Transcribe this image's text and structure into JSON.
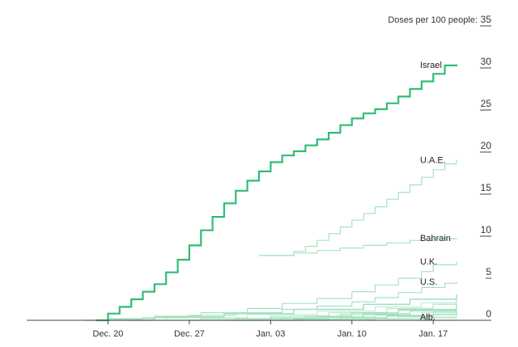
{
  "chart_data": {
    "type": "line",
    "step": true,
    "title": "",
    "ylabel": "Doses per 100 people:",
    "xlabel": "",
    "x_ticks": [
      "Dec. 20",
      "Dec. 27",
      "Jan. 03",
      "Jan. 10",
      "Jan. 17"
    ],
    "xlim": [
      "2020-12-13",
      "2021-01-22"
    ],
    "ylim": [
      0,
      35
    ],
    "y_ticks": [
      0,
      5,
      10,
      15,
      20,
      25,
      30,
      35
    ],
    "grid": false,
    "highlight_color": "#2ebd72",
    "muted_color": "#a6e3c2",
    "series": [
      {
        "name": "Israel",
        "highlight": true,
        "x": [
          "2020-12-19",
          "2020-12-20",
          "2020-12-21",
          "2020-12-22",
          "2020-12-23",
          "2020-12-24",
          "2020-12-25",
          "2020-12-26",
          "2020-12-27",
          "2020-12-28",
          "2020-12-29",
          "2020-12-30",
          "2020-12-31",
          "2021-01-01",
          "2021-01-02",
          "2021-01-03",
          "2021-01-04",
          "2021-01-05",
          "2021-01-06",
          "2021-01-07",
          "2021-01-08",
          "2021-01-09",
          "2021-01-10",
          "2021-01-11",
          "2021-01-12",
          "2021-01-13",
          "2021-01-14",
          "2021-01-15",
          "2021-01-16",
          "2021-01-17",
          "2021-01-18",
          "2021-01-19"
        ],
        "values": [
          0,
          0.8,
          1.6,
          2.5,
          3.4,
          4.3,
          5.7,
          7.2,
          8.9,
          10.7,
          12.3,
          13.9,
          15.4,
          16.6,
          17.7,
          18.8,
          19.6,
          20.1,
          20.8,
          21.5,
          22.3,
          23.2,
          24.0,
          24.6,
          25.1,
          25.8,
          26.6,
          27.5,
          28.4,
          29.3,
          30.3,
          30.4
        ]
      },
      {
        "name": "U.A.E.",
        "x": [
          "2021-01-02",
          "2021-01-05",
          "2021-01-06",
          "2021-01-07",
          "2021-01-08",
          "2021-01-09",
          "2021-01-10",
          "2021-01-11",
          "2021-01-12",
          "2021-01-13",
          "2021-01-14",
          "2021-01-15",
          "2021-01-16",
          "2021-01-17",
          "2021-01-18",
          "2021-01-19"
        ],
        "values": [
          7.7,
          8.2,
          8.8,
          9.5,
          10.3,
          11.1,
          11.9,
          12.7,
          13.5,
          14.4,
          15.2,
          16.1,
          17.0,
          17.9,
          18.6,
          19.1
        ]
      },
      {
        "name": "Bahrain",
        "x": [
          "2021-01-02",
          "2021-01-05",
          "2021-01-07",
          "2021-01-09",
          "2021-01-11",
          "2021-01-13",
          "2021-01-15",
          "2021-01-17",
          "2021-01-19"
        ],
        "values": [
          7.7,
          8.0,
          8.3,
          8.6,
          8.9,
          9.2,
          9.5,
          9.7,
          9.8
        ]
      },
      {
        "name": "U.K.",
        "x": [
          "2020-12-20",
          "2020-12-24",
          "2020-12-28",
          "2021-01-01",
          "2021-01-04",
          "2021-01-07",
          "2021-01-10",
          "2021-01-12",
          "2021-01-14",
          "2021-01-16",
          "2021-01-17",
          "2021-01-19"
        ],
        "values": [
          0.2,
          0.5,
          0.9,
          1.4,
          2.0,
          2.6,
          3.4,
          4.2,
          5.0,
          5.8,
          6.6,
          7.0
        ]
      },
      {
        "name": "U.S.",
        "x": [
          "2020-12-20",
          "2020-12-23",
          "2020-12-27",
          "2020-12-31",
          "2021-01-04",
          "2021-01-07",
          "2021-01-10",
          "2021-01-12",
          "2021-01-14",
          "2021-01-16",
          "2021-01-18",
          "2021-01-19"
        ],
        "values": [
          0.1,
          0.3,
          0.6,
          0.9,
          1.3,
          1.7,
          2.2,
          2.7,
          3.3,
          3.9,
          4.4,
          4.6
        ]
      },
      {
        "name": "Alb.",
        "x": [
          "2021-01-11",
          "2021-01-19"
        ],
        "values": [
          0.0,
          0.0
        ]
      }
    ],
    "background_lines": [
      {
        "x": [
          "2020-12-18",
          "2020-12-24",
          "2020-12-30",
          "2021-01-05",
          "2021-01-11",
          "2021-01-15",
          "2021-01-19"
        ],
        "values": [
          0,
          0.4,
          0.8,
          1.3,
          1.9,
          2.5,
          3.1
        ]
      },
      {
        "x": [
          "2020-12-19",
          "2020-12-25",
          "2021-01-01",
          "2021-01-07",
          "2021-01-12",
          "2021-01-16",
          "2021-01-19"
        ],
        "values": [
          0,
          0.3,
          0.7,
          1.1,
          1.6,
          2.1,
          2.6
        ]
      },
      {
        "x": [
          "2020-12-22",
          "2020-12-28",
          "2021-01-03",
          "2021-01-08",
          "2021-01-13",
          "2021-01-17",
          "2021-01-19"
        ],
        "values": [
          0,
          0.2,
          0.5,
          0.9,
          1.4,
          1.9,
          2.2
        ]
      },
      {
        "x": [
          "2020-12-24",
          "2020-12-31",
          "2021-01-06",
          "2021-01-10",
          "2021-01-14",
          "2021-01-19"
        ],
        "values": [
          0,
          0.2,
          0.5,
          0.9,
          1.3,
          1.8
        ]
      },
      {
        "x": [
          "2020-12-27",
          "2021-01-02",
          "2021-01-07",
          "2021-01-11",
          "2021-01-15",
          "2021-01-19"
        ],
        "values": [
          0,
          0.2,
          0.4,
          0.7,
          1.1,
          1.5
        ]
      },
      {
        "x": [
          "2020-12-29",
          "2021-01-04",
          "2021-01-08",
          "2021-01-12",
          "2021-01-16",
          "2021-01-19"
        ],
        "values": [
          0,
          0.2,
          0.4,
          0.6,
          0.9,
          1.2
        ]
      },
      {
        "x": [
          "2020-12-31",
          "2021-01-05",
          "2021-01-09",
          "2021-01-13",
          "2021-01-17",
          "2021-01-19"
        ],
        "values": [
          0,
          0.1,
          0.3,
          0.5,
          0.7,
          0.9
        ]
      },
      {
        "x": [
          "2021-01-02",
          "2021-01-06",
          "2021-01-10",
          "2021-01-14",
          "2021-01-19"
        ],
        "values": [
          0,
          0.1,
          0.2,
          0.4,
          0.6
        ]
      },
      {
        "x": [
          "2021-01-04",
          "2021-01-08",
          "2021-01-12",
          "2021-01-16",
          "2021-01-19"
        ],
        "values": [
          0,
          0.1,
          0.2,
          0.3,
          0.4
        ]
      },
      {
        "x": [
          "2020-12-26",
          "2021-01-03",
          "2021-01-09",
          "2021-01-14",
          "2021-01-19"
        ],
        "values": [
          0,
          0.3,
          0.7,
          1.2,
          1.7
        ]
      },
      {
        "x": [
          "2020-12-30",
          "2021-01-06",
          "2021-01-11",
          "2021-01-15",
          "2021-01-19"
        ],
        "values": [
          0,
          0.3,
          0.8,
          1.3,
          1.9
        ]
      },
      {
        "x": [
          "2021-01-05",
          "2021-01-09",
          "2021-01-13",
          "2021-01-17",
          "2021-01-19"
        ],
        "values": [
          0,
          0.3,
          0.6,
          1.0,
          1.3
        ]
      }
    ]
  }
}
